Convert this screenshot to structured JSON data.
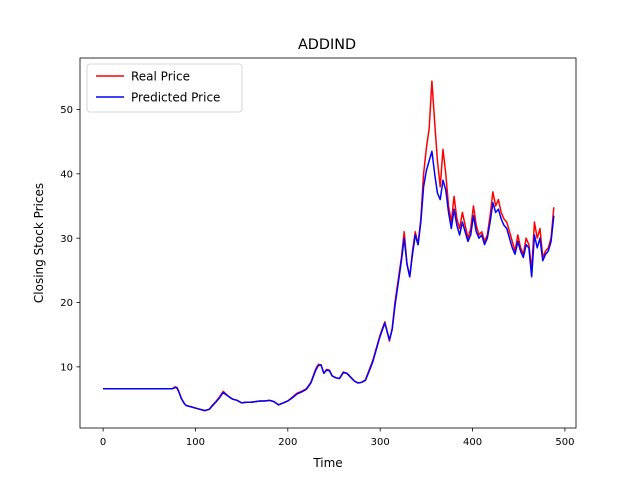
{
  "chart_data": {
    "type": "line",
    "title": "ADDIND",
    "xlabel": "Time",
    "ylabel": "Closing Stock Prices",
    "xlim": [
      -25,
      512
    ],
    "ylim": [
      0.5,
      58
    ],
    "xticks": [
      0,
      100,
      200,
      300,
      400,
      500
    ],
    "yticks": [
      10,
      20,
      30,
      40,
      50
    ],
    "grid": false,
    "legend_position": "top-left",
    "series": [
      {
        "name": "Real Price",
        "color": "#ff0000",
        "x": [
          0,
          10,
          20,
          30,
          40,
          50,
          60,
          70,
          75,
          78,
          80,
          82,
          85,
          88,
          90,
          95,
          100,
          105,
          110,
          115,
          118,
          122,
          126,
          130,
          135,
          140,
          145,
          150,
          155,
          160,
          165,
          170,
          175,
          180,
          185,
          190,
          195,
          200,
          205,
          210,
          215,
          220,
          225,
          230,
          233,
          236,
          239,
          242,
          245,
          248,
          252,
          256,
          260,
          264,
          268,
          272,
          276,
          280,
          284,
          288,
          292,
          296,
          300,
          305,
          310,
          313,
          316,
          320,
          323,
          326,
          329,
          332,
          335,
          338,
          341,
          344,
          347,
          350,
          353,
          356,
          359,
          362,
          365,
          368,
          371,
          374,
          377,
          380,
          383,
          386,
          389,
          392,
          395,
          398,
          401,
          404,
          407,
          410,
          413,
          416,
          419,
          422,
          425,
          428,
          431,
          434,
          437,
          440,
          443,
          446,
          449,
          452,
          455,
          458,
          461,
          464,
          467,
          470,
          473,
          476,
          479,
          482,
          485,
          488
        ],
        "y": [
          6.6,
          6.6,
          6.6,
          6.6,
          6.6,
          6.6,
          6.6,
          6.6,
          6.6,
          6.9,
          6.8,
          6.2,
          5.0,
          4.3,
          4.0,
          3.8,
          3.6,
          3.4,
          3.2,
          3.4,
          4.0,
          4.6,
          5.3,
          6.2,
          5.5,
          5.0,
          4.8,
          4.4,
          4.5,
          4.5,
          4.6,
          4.7,
          4.7,
          4.8,
          4.6,
          4.1,
          4.4,
          4.7,
          5.3,
          5.9,
          6.2,
          6.6,
          7.6,
          9.6,
          10.4,
          10.3,
          9.0,
          9.6,
          9.5,
          8.6,
          8.3,
          8.2,
          9.2,
          9.0,
          8.4,
          7.8,
          7.5,
          7.6,
          8.0,
          9.5,
          11.0,
          13.0,
          15.0,
          17.0,
          14.0,
          16.0,
          20.0,
          24.0,
          27.0,
          31.0,
          26.0,
          24.0,
          28.0,
          31.0,
          29.0,
          33.0,
          40.0,
          44.0,
          47.0,
          54.4,
          48.0,
          42.0,
          38.0,
          43.8,
          40.0,
          35.0,
          32.5,
          36.5,
          33.0,
          31.5,
          34.0,
          32.0,
          30.0,
          31.5,
          35.0,
          32.0,
          30.5,
          31.0,
          29.5,
          30.5,
          33.5,
          37.2,
          35.0,
          36.0,
          34.0,
          33.0,
          32.5,
          31.0,
          29.5,
          28.0,
          30.5,
          28.5,
          27.5,
          30.0,
          29.0,
          25.0,
          32.5,
          30.0,
          31.5,
          27.0,
          28.0,
          28.5,
          30.0,
          34.8
        ]
      },
      {
        "name": "Predicted Price",
        "color": "#0000ff",
        "x": [
          0,
          10,
          20,
          30,
          40,
          50,
          60,
          70,
          75,
          78,
          80,
          82,
          85,
          88,
          90,
          95,
          100,
          105,
          110,
          115,
          118,
          122,
          126,
          130,
          135,
          140,
          145,
          150,
          155,
          160,
          165,
          170,
          175,
          180,
          185,
          190,
          195,
          200,
          205,
          210,
          215,
          220,
          225,
          230,
          233,
          236,
          239,
          242,
          245,
          248,
          252,
          256,
          260,
          264,
          268,
          272,
          276,
          280,
          284,
          288,
          292,
          296,
          300,
          305,
          310,
          313,
          316,
          320,
          323,
          326,
          329,
          332,
          335,
          338,
          341,
          344,
          347,
          350,
          353,
          356,
          359,
          362,
          365,
          368,
          371,
          374,
          377,
          380,
          383,
          386,
          389,
          392,
          395,
          398,
          401,
          404,
          407,
          410,
          413,
          416,
          419,
          422,
          425,
          428,
          431,
          434,
          437,
          440,
          443,
          446,
          449,
          452,
          455,
          458,
          461,
          464,
          467,
          470,
          473,
          476,
          479,
          482,
          485,
          488
        ],
        "y": [
          6.6,
          6.6,
          6.6,
          6.6,
          6.6,
          6.6,
          6.6,
          6.6,
          6.6,
          6.8,
          6.7,
          6.1,
          5.0,
          4.3,
          4.0,
          3.8,
          3.6,
          3.4,
          3.2,
          3.4,
          3.9,
          4.5,
          5.2,
          6.0,
          5.5,
          5.0,
          4.8,
          4.4,
          4.5,
          4.5,
          4.6,
          4.7,
          4.7,
          4.8,
          4.6,
          4.1,
          4.4,
          4.7,
          5.2,
          5.8,
          6.1,
          6.5,
          7.5,
          9.4,
          10.2,
          10.3,
          9.0,
          9.5,
          9.4,
          8.6,
          8.3,
          8.2,
          9.1,
          9.0,
          8.4,
          7.8,
          7.5,
          7.6,
          7.9,
          9.3,
          10.8,
          12.8,
          14.8,
          16.8,
          14.2,
          15.8,
          19.5,
          23.5,
          26.5,
          30.0,
          26.0,
          24.0,
          27.5,
          30.5,
          29.0,
          32.5,
          38.0,
          40.5,
          42.0,
          43.5,
          40.0,
          37.0,
          36.0,
          39.0,
          37.5,
          34.0,
          31.5,
          34.5,
          32.0,
          30.5,
          32.5,
          31.0,
          29.5,
          30.5,
          33.5,
          31.0,
          30.0,
          30.5,
          29.0,
          30.0,
          32.5,
          35.5,
          34.0,
          34.5,
          33.0,
          32.0,
          31.5,
          30.0,
          28.5,
          27.5,
          29.5,
          28.0,
          27.0,
          29.0,
          28.5,
          24.0,
          30.5,
          28.5,
          30.0,
          26.5,
          27.5,
          28.0,
          29.5,
          33.5
        ]
      }
    ]
  }
}
